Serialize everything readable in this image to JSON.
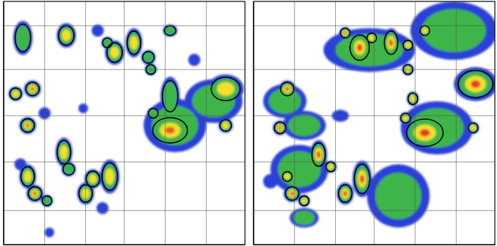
{
  "chart_data": [
    {
      "type": "field",
      "grid": true,
      "tick_labels": false,
      "xlim": [
        0,
        100
      ],
      "ylim": [
        0,
        100
      ],
      "xticks": [
        17,
        34,
        50,
        67,
        84
      ],
      "yticks": [
        14,
        34,
        53,
        72,
        90
      ],
      "levels": [
        1,
        2,
        3,
        4
      ],
      "colors": [
        "#2b3fd8",
        "#3db54a",
        "#f0e02c",
        "#ec5a2a"
      ],
      "cells": [
        {
          "x": 87,
          "y": 59,
          "rx": 12,
          "ry": 9,
          "peak": 2,
          "object": false
        },
        {
          "x": 71,
          "y": 49,
          "rx": 13,
          "ry": 11,
          "peak": 2,
          "object": false
        },
        {
          "x": 8,
          "y": 85,
          "rx": 4,
          "ry": 7,
          "peak": 2,
          "object": true
        },
        {
          "x": 26,
          "y": 86,
          "rx": 4,
          "ry": 5,
          "peak": 3,
          "object": true
        },
        {
          "x": 39,
          "y": 88,
          "rx": 2.5,
          "ry": 2.5,
          "peak": 1,
          "object": false
        },
        {
          "x": 43,
          "y": 83,
          "rx": 2.5,
          "ry": 2.5,
          "peak": 2,
          "object": true
        },
        {
          "x": 46,
          "y": 79,
          "rx": 4,
          "ry": 5,
          "peak": 3,
          "object": true
        },
        {
          "x": 54,
          "y": 83,
          "rx": 3.5,
          "ry": 6,
          "peak": 3,
          "object": true
        },
        {
          "x": 60,
          "y": 77,
          "rx": 3,
          "ry": 3,
          "peak": 2,
          "object": true
        },
        {
          "x": 61,
          "y": 72,
          "rx": 2.5,
          "ry": 2.5,
          "peak": 2,
          "object": true
        },
        {
          "x": 69,
          "y": 88,
          "rx": 3,
          "ry": 2.5,
          "peak": 2,
          "object": true
        },
        {
          "x": 79,
          "y": 76,
          "rx": 2.5,
          "ry": 2.5,
          "peak": 1,
          "object": false
        },
        {
          "x": 92,
          "y": 64,
          "rx": 7.5,
          "ry": 6,
          "peak": 3,
          "object": true
        },
        {
          "x": 5,
          "y": 62,
          "rx": 3,
          "ry": 3,
          "peak": 3,
          "object": true
        },
        {
          "x": 12,
          "y": 64,
          "rx": 3.5,
          "ry": 3.5,
          "peak": 4,
          "object": true
        },
        {
          "x": 10,
          "y": 49,
          "rx": 3.5,
          "ry": 3.5,
          "peak": 4,
          "object": true
        },
        {
          "x": 17,
          "y": 54,
          "rx": 2.5,
          "ry": 2.5,
          "peak": 1,
          "object": false
        },
        {
          "x": 69,
          "y": 61,
          "rx": 4,
          "ry": 8,
          "peak": 2,
          "object": true
        },
        {
          "x": 62,
          "y": 54,
          "rx": 2.5,
          "ry": 2.5,
          "peak": 2,
          "object": true
        },
        {
          "x": 69,
          "y": 47,
          "rx": 9,
          "ry": 6.5,
          "peak": 4,
          "object": true
        },
        {
          "x": 92,
          "y": 49,
          "rx": 3,
          "ry": 3,
          "peak": 3,
          "object": true
        },
        {
          "x": 25,
          "y": 38,
          "rx": 3.5,
          "ry": 6,
          "peak": 3,
          "object": true
        },
        {
          "x": 27,
          "y": 31,
          "rx": 3,
          "ry": 3,
          "peak": 2,
          "object": true
        },
        {
          "x": 37,
          "y": 27,
          "rx": 3.5,
          "ry": 4,
          "peak": 3,
          "object": true
        },
        {
          "x": 44,
          "y": 28,
          "rx": 4,
          "ry": 7,
          "peak": 3,
          "object": true
        },
        {
          "x": 10,
          "y": 28,
          "rx": 3.5,
          "ry": 5,
          "peak": 3,
          "object": true
        },
        {
          "x": 13,
          "y": 21,
          "rx": 3.5,
          "ry": 3.5,
          "peak": 4,
          "object": true
        },
        {
          "x": 18,
          "y": 18,
          "rx": 2.5,
          "ry": 2.5,
          "peak": 2,
          "object": true
        },
        {
          "x": 34,
          "y": 21,
          "rx": 3.5,
          "ry": 4.5,
          "peak": 3,
          "object": true
        },
        {
          "x": 41,
          "y": 15,
          "rx": 2.5,
          "ry": 2.5,
          "peak": 1,
          "object": false
        },
        {
          "x": 19,
          "y": 5,
          "rx": 2,
          "ry": 2,
          "peak": 1,
          "object": false
        },
        {
          "x": 7,
          "y": 33,
          "rx": 2.5,
          "ry": 2.5,
          "peak": 1,
          "object": false
        },
        {
          "x": 33,
          "y": 56,
          "rx": 2,
          "ry": 2,
          "peak": 1,
          "object": false
        }
      ]
    },
    {
      "type": "field",
      "grid": true,
      "tick_labels": false,
      "xlim": [
        0,
        100
      ],
      "ylim": [
        0,
        100
      ],
      "xticks": [
        17,
        34,
        50,
        67,
        84
      ],
      "yticks": [
        14,
        34,
        53,
        72,
        90
      ],
      "levels": [
        1,
        2,
        3,
        4
      ],
      "colors": [
        "#2b3fd8",
        "#3db54a",
        "#f0e02c",
        "#ec3a2a"
      ],
      "cells": [
        {
          "x": 83,
          "y": 88,
          "rx": 18,
          "ry": 12,
          "peak": 2,
          "object": false
        },
        {
          "x": 48,
          "y": 80,
          "rx": 19,
          "ry": 9,
          "peak": 2,
          "object": false
        },
        {
          "x": 13,
          "y": 59,
          "rx": 9,
          "ry": 7,
          "peak": 2,
          "object": false
        },
        {
          "x": 21,
          "y": 49,
          "rx": 9,
          "ry": 6,
          "peak": 2,
          "object": false
        },
        {
          "x": 19,
          "y": 31,
          "rx": 12,
          "ry": 10,
          "peak": 2,
          "object": false
        },
        {
          "x": 60,
          "y": 20,
          "rx": 13,
          "ry": 13,
          "peak": 2,
          "object": false
        },
        {
          "x": 76,
          "y": 48,
          "rx": 15,
          "ry": 11,
          "peak": 2,
          "object": false
        },
        {
          "x": 21,
          "y": 11,
          "rx": 6,
          "ry": 4,
          "peak": 2,
          "object": false
        },
        {
          "x": 7,
          "y": 26,
          "rx": 3,
          "ry": 3,
          "peak": 1,
          "object": false
        },
        {
          "x": 36,
          "y": 53,
          "rx": 3.5,
          "ry": 2.5,
          "peak": 1,
          "object": false
        },
        {
          "x": 38,
          "y": 87,
          "rx": 2.5,
          "ry": 2.5,
          "peak": 4,
          "object": true
        },
        {
          "x": 44,
          "y": 81,
          "rx": 5,
          "ry": 6.5,
          "peak": 4,
          "object": true
        },
        {
          "x": 49,
          "y": 85,
          "rx": 2.5,
          "ry": 2.5,
          "peak": 3,
          "object": true
        },
        {
          "x": 57,
          "y": 83,
          "rx": 3.5,
          "ry": 6,
          "peak": 4,
          "object": true
        },
        {
          "x": 64,
          "y": 82,
          "rx": 2.5,
          "ry": 2.5,
          "peak": 3,
          "object": true
        },
        {
          "x": 71,
          "y": 88,
          "rx": 2.5,
          "ry": 2.5,
          "peak": 3,
          "object": true
        },
        {
          "x": 64,
          "y": 72,
          "rx": 2.5,
          "ry": 2.5,
          "peak": 3,
          "object": true
        },
        {
          "x": 14,
          "y": 64,
          "rx": 3.5,
          "ry": 3.5,
          "peak": 4,
          "object": true
        },
        {
          "x": 11,
          "y": 48,
          "rx": 3,
          "ry": 3,
          "peak": 4,
          "object": true
        },
        {
          "x": 66,
          "y": 60,
          "rx": 2.5,
          "ry": 3,
          "peak": 3,
          "object": true
        },
        {
          "x": 63,
          "y": 52,
          "rx": 2.5,
          "ry": 2.5,
          "peak": 3,
          "object": true
        },
        {
          "x": 71,
          "y": 46,
          "rx": 9.5,
          "ry": 7,
          "peak": 4,
          "object": true
        },
        {
          "x": 92,
          "y": 66,
          "rx": 9,
          "ry": 7,
          "peak": 4,
          "object": true
        },
        {
          "x": 91,
          "y": 48,
          "rx": 2.5,
          "ry": 2.5,
          "peak": 3,
          "object": true
        },
        {
          "x": 27,
          "y": 37,
          "rx": 3.5,
          "ry": 6,
          "peak": 4,
          "object": true
        },
        {
          "x": 32,
          "y": 32,
          "rx": 2.5,
          "ry": 2.5,
          "peak": 3,
          "object": true
        },
        {
          "x": 45,
          "y": 27,
          "rx": 4,
          "ry": 7.5,
          "peak": 4,
          "object": true
        },
        {
          "x": 38,
          "y": 21,
          "rx": 3.5,
          "ry": 4.5,
          "peak": 4,
          "object": true
        },
        {
          "x": 14,
          "y": 28,
          "rx": 2.5,
          "ry": 2.5,
          "peak": 3,
          "object": true
        },
        {
          "x": 16,
          "y": 21,
          "rx": 3.5,
          "ry": 3.5,
          "peak": 4,
          "object": true
        },
        {
          "x": 21,
          "y": 18,
          "rx": 2.5,
          "ry": 2.5,
          "peak": 3,
          "object": true
        }
      ]
    }
  ]
}
